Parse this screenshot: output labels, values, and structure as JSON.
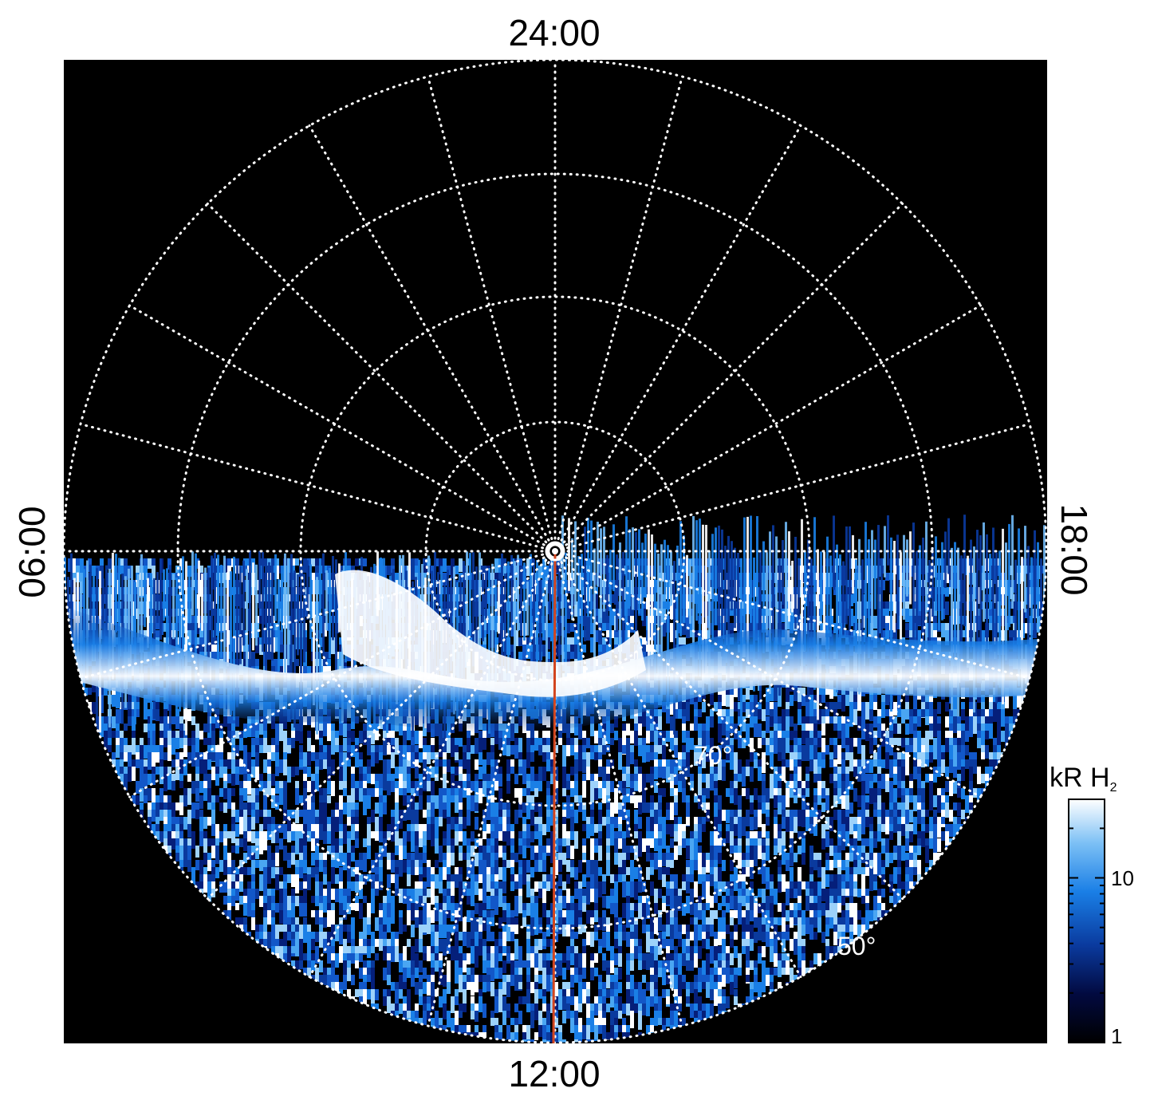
{
  "labels": {
    "top": "24:00",
    "bottom": "12:00",
    "left": "06:00",
    "right": "18:00"
  },
  "latitude_labels": {
    "lat70": "70°",
    "lat50": "50°"
  },
  "colorbar": {
    "title_main": "kR H",
    "title_sub": "2",
    "tick_10": "10",
    "tick_1": "1",
    "scale": "log",
    "range": [
      1,
      30
    ]
  },
  "colors": {
    "background": "#000000",
    "grid": "#ffffff",
    "meridian": "#d2451e",
    "cmap_low": "#000000",
    "cmap_mid": "#1a7fe6",
    "cmap_high": "#ffffff"
  }
}
